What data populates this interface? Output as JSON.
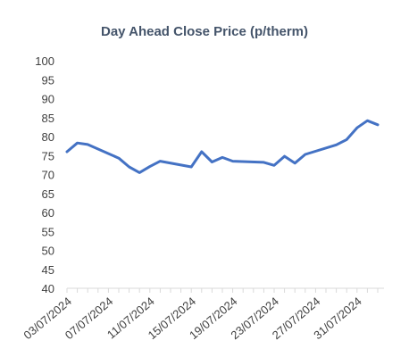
{
  "chart_data": {
    "type": "line",
    "title": "Day Ahead Close Price (p/therm)",
    "xlabel": "",
    "ylabel": "",
    "ylim": [
      40,
      100
    ],
    "yticks": [
      40,
      45,
      50,
      55,
      60,
      65,
      70,
      75,
      80,
      85,
      90,
      95,
      100
    ],
    "grid": false,
    "legend": "none",
    "line_color": "#4472C4",
    "x_tick_labels": [
      "03/07/2024",
      "07/07/2024",
      "11/07/2024",
      "15/07/2024",
      "19/07/2024",
      "23/07/2024",
      "27/07/2024",
      "31/07/2024"
    ],
    "series": [
      {
        "x": [
          "03/07/2024",
          "04/07/2024",
          "05/07/2024",
          "08/07/2024",
          "09/07/2024",
          "10/07/2024",
          "11/07/2024",
          "12/07/2024",
          "15/07/2024",
          "16/07/2024",
          "17/07/2024",
          "18/07/2024",
          "19/07/2024",
          "22/07/2024",
          "23/07/2024",
          "24/07/2024",
          "25/07/2024",
          "26/07/2024",
          "29/07/2024",
          "30/07/2024",
          "31/07/2024",
          "01/08/2024",
          "02/08/2024"
        ],
        "values": [
          76.0,
          78.3,
          77.9,
          74.3,
          72.0,
          70.5,
          72.1,
          73.5,
          72.0,
          76.0,
          73.3,
          74.5,
          73.5,
          73.2,
          72.4,
          74.8,
          73.0,
          75.3,
          77.8,
          79.2,
          82.3,
          84.2,
          83.1
        ]
      }
    ]
  }
}
